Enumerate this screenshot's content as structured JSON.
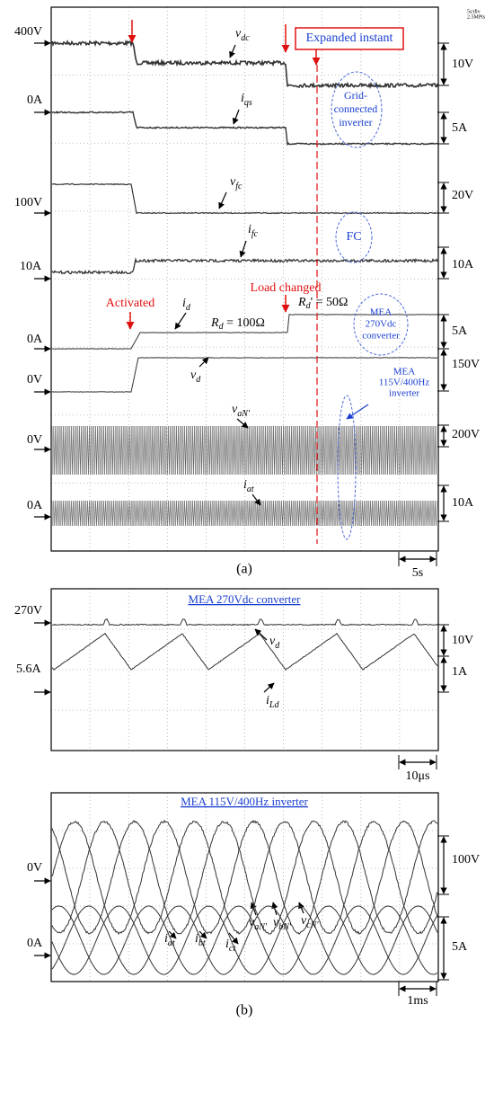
{
  "panel_a": {
    "scope_info": [
      "5s/div",
      "2.5MPts"
    ],
    "left_labels": [
      "400V",
      "0A",
      "100V",
      "10A",
      "0A",
      "0V",
      "0V",
      "0A"
    ],
    "right_scales": [
      "10V",
      "5A",
      "20V",
      "10A",
      "5A",
      "150V",
      "200V",
      "10A"
    ],
    "signals": [
      {
        "symbol": "v",
        "subscript": "dc"
      },
      {
        "symbol": "i",
        "subscript": "qs"
      },
      {
        "symbol": "v",
        "subscript": "fc"
      },
      {
        "symbol": "i",
        "subscript": "fc"
      },
      {
        "symbol": "i",
        "subscript": "d"
      },
      {
        "symbol": "v",
        "subscript": "d"
      },
      {
        "symbol": "v",
        "subscript": "aN'"
      },
      {
        "symbol": "i",
        "subscript": "at"
      }
    ],
    "expanded_instant": "Expanded instant",
    "groups": [
      "Grid-",
      "connected",
      "inverter",
      "FC",
      "MEA",
      "270Vdc",
      "converter",
      "MEA",
      "115V/400Hz",
      "inverter"
    ],
    "activated": "Activated",
    "load_changed": "Load changed",
    "load_before": {
      "symbol": "R",
      "subscript": "d",
      "text": " = 100Ω"
    },
    "load_after": {
      "symbol": "R",
      "subscript": "d",
      "text": "' = 50Ω"
    },
    "time_scale": "5s",
    "caption": "(a)"
  },
  "panel_b1": {
    "title": "MEA 270Vdc converter",
    "left_labels": [
      "270V",
      "5.6A"
    ],
    "right_scales": [
      "10V",
      "1A"
    ],
    "signals": [
      {
        "symbol": "v",
        "subscript": "d"
      },
      {
        "symbol": "i",
        "subscript": "Ld"
      }
    ],
    "time_scale": "10μs"
  },
  "panel_b2": {
    "title": "MEA 115V/400Hz inverter",
    "left_labels": [
      "0V",
      "0A"
    ],
    "right_scales": [
      "100V",
      "5A"
    ],
    "signals": [
      {
        "symbol": "v",
        "subscript": "aN'"
      },
      {
        "symbol": "v",
        "subscript": "bN'"
      },
      {
        "symbol": "v",
        "subscript": "cN'"
      },
      {
        "symbol": "i",
        "subscript": "at"
      },
      {
        "symbol": "i",
        "subscript": "bt"
      },
      {
        "symbol": "i",
        "subscript": "ct"
      }
    ],
    "time_scale": "1ms",
    "caption": "(b)"
  }
}
